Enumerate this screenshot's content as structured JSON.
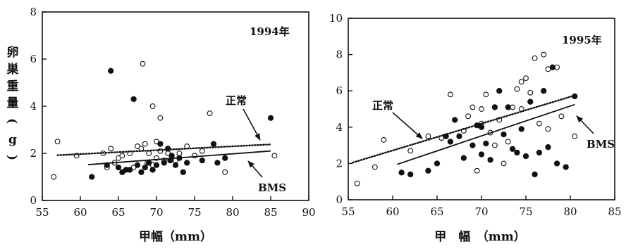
{
  "y_axis_label_chars": [
    "卵",
    "巣",
    "重",
    "量",
    "(",
    "g",
    ")"
  ],
  "chart_data": [
    {
      "type": "scatter",
      "title": "1994年",
      "xlabel": "甲幅（mm）",
      "ylabel": "卵巣重量（g）",
      "xlim": [
        55,
        90
      ],
      "ylim": [
        0,
        8
      ],
      "xticks": [
        "55",
        "60",
        "65",
        "70",
        "75",
        "80",
        "85",
        "90"
      ],
      "yticks": [
        "0",
        "2",
        "4",
        "6",
        "8"
      ],
      "series": [
        {
          "name": "正常",
          "marker": "open-circle",
          "points": [
            [
              56.5,
              1.0
            ],
            [
              57,
              2.5
            ],
            [
              59.5,
              1.9
            ],
            [
              63,
              2.0
            ],
            [
              63.5,
              1.4
            ],
            [
              64,
              2.2
            ],
            [
              64.5,
              1.6
            ],
            [
              65,
              1.8
            ],
            [
              65.5,
              1.9
            ],
            [
              66.5,
              2.0
            ],
            [
              67,
              1.4
            ],
            [
              67.5,
              2.3
            ],
            [
              68,
              2.2
            ],
            [
              68.2,
              5.8
            ],
            [
              68.5,
              2.4
            ],
            [
              68.8,
              1.6
            ],
            [
              69,
              2.0
            ],
            [
              69.5,
              1.5
            ],
            [
              69.5,
              4.0
            ],
            [
              70,
              1.8
            ],
            [
              70,
              2.5
            ],
            [
              70.5,
              3.5
            ],
            [
              70.5,
              2.1
            ],
            [
              71,
              1.7
            ],
            [
              71.5,
              2.0
            ],
            [
              72,
              1.9
            ],
            [
              72.5,
              1.7
            ],
            [
              73,
              2.0
            ],
            [
              74,
              2.3
            ],
            [
              75,
              1.9
            ],
            [
              76,
              2.1
            ],
            [
              77,
              3.7
            ],
            [
              79,
              1.2
            ],
            [
              85.5,
              1.9
            ]
          ]
        },
        {
          "name": "BMS",
          "marker": "filled-circle",
          "points": [
            [
              61.5,
              1.0
            ],
            [
              63.5,
              1.5
            ],
            [
              64,
              5.5
            ],
            [
              65,
              1.4
            ],
            [
              65.5,
              1.2
            ],
            [
              66,
              1.3
            ],
            [
              66.5,
              1.3
            ],
            [
              67,
              4.3
            ],
            [
              67.5,
              1.5
            ],
            [
              68,
              1.2
            ],
            [
              68.5,
              1.4
            ],
            [
              69,
              1.6
            ],
            [
              69.5,
              1.3
            ],
            [
              70,
              1.5
            ],
            [
              70.5,
              2.4
            ],
            [
              71,
              1.6
            ],
            [
              71.5,
              2.2
            ],
            [
              71.8,
              1.7
            ],
            [
              72,
              1.9
            ],
            [
              72.5,
              1.5
            ],
            [
              73,
              1.8
            ],
            [
              73.5,
              1.2
            ],
            [
              74,
              1.6
            ],
            [
              76,
              1.7
            ],
            [
              77.5,
              2.4
            ],
            [
              78,
              1.6
            ],
            [
              79,
              1.8
            ],
            [
              85,
              3.5
            ]
          ]
        }
      ],
      "lines": [
        {
          "name": "正常",
          "style": "dotted",
          "x": [
            57,
            85
          ],
          "y": [
            1.92,
            2.38
          ]
        },
        {
          "name": "BMS",
          "style": "solid",
          "x": [
            61,
            85
          ],
          "y": [
            1.52,
            2.1
          ]
        }
      ],
      "annotations": [
        {
          "text": "正常",
          "arrow_to": [
            85,
            2.4
          ]
        },
        {
          "text": "BMS",
          "arrow_to": [
            83,
            1.85
          ]
        }
      ]
    },
    {
      "type": "scatter",
      "title": "1995年",
      "xlabel": "甲　幅　（mm）",
      "ylabel": "",
      "xlim": [
        55,
        85
      ],
      "ylim": [
        0,
        10
      ],
      "xticks": [
        "55",
        "60",
        "65",
        "70",
        "75",
        "80",
        "85"
      ],
      "yticks": [
        "0",
        "2",
        "4",
        "6",
        "8",
        "10"
      ],
      "series": [
        {
          "name": "正常",
          "marker": "open-circle",
          "points": [
            [
              56,
              0.9
            ],
            [
              58,
              1.8
            ],
            [
              59,
              3.3
            ],
            [
              62,
              2.7
            ],
            [
              64,
              3.5
            ],
            [
              65.5,
              3.4
            ],
            [
              66.5,
              5.8
            ],
            [
              68,
              3.8
            ],
            [
              68.5,
              4.6
            ],
            [
              69,
              5.1
            ],
            [
              69.5,
              1.6
            ],
            [
              70,
              5.0
            ],
            [
              70,
              4.2
            ],
            [
              70.5,
              5.8
            ],
            [
              71,
              3.7
            ],
            [
              71.5,
              3.0
            ],
            [
              72,
              4.4
            ],
            [
              72.5,
              2.0
            ],
            [
              73,
              3.2
            ],
            [
              73.5,
              5.1
            ],
            [
              74,
              6.1
            ],
            [
              74.5,
              6.5
            ],
            [
              74.5,
              5.0
            ],
            [
              75,
              6.7
            ],
            [
              75.5,
              5.9
            ],
            [
              76,
              7.8
            ],
            [
              76.5,
              4.2
            ],
            [
              77,
              8.0
            ],
            [
              77.5,
              7.2
            ],
            [
              77.5,
              3.9
            ],
            [
              78.5,
              7.3
            ],
            [
              79,
              4.6
            ],
            [
              80.5,
              3.5
            ]
          ]
        },
        {
          "name": "BMS",
          "marker": "filled-circle",
          "points": [
            [
              61,
              1.5
            ],
            [
              62,
              1.4
            ],
            [
              64,
              1.6
            ],
            [
              65,
              2.0
            ],
            [
              66,
              3.5
            ],
            [
              66.5,
              3.2
            ],
            [
              67,
              4.4
            ],
            [
              67.5,
              3.5
            ],
            [
              68,
              2.3
            ],
            [
              69,
              3.0
            ],
            [
              69.5,
              4.1
            ],
            [
              70,
              2.5
            ],
            [
              70,
              4.0
            ],
            [
              70.5,
              3.1
            ],
            [
              71,
              2.2
            ],
            [
              71.5,
              5.1
            ],
            [
              72,
              6.0
            ],
            [
              72.5,
              3.6
            ],
            [
              73,
              5.1
            ],
            [
              73.5,
              2.8
            ],
            [
              74,
              2.6
            ],
            [
              74.5,
              3.9
            ],
            [
              75,
              2.4
            ],
            [
              75.5,
              5.4
            ],
            [
              76,
              1.4
            ],
            [
              76.5,
              2.6
            ],
            [
              77,
              6.0
            ],
            [
              77.5,
              2.9
            ],
            [
              78,
              7.3
            ],
            [
              78.5,
              2.0
            ],
            [
              79.5,
              1.8
            ],
            [
              80.5,
              5.7
            ]
          ]
        }
      ],
      "lines": [
        {
          "name": "正常",
          "style": "dotted",
          "x": [
            55.5,
            80.5
          ],
          "y": [
            2.05,
            5.75
          ]
        },
        {
          "name": "BMS",
          "style": "solid",
          "x": [
            60.5,
            80.5
          ],
          "y": [
            1.95,
            5.25
          ]
        }
      ],
      "annotations": [
        {
          "text": "正常",
          "arrow_to": [
            66,
            3.35
          ]
        },
        {
          "text": "BMS",
          "arrow_to": [
            81.5,
            4.9
          ]
        }
      ]
    }
  ]
}
